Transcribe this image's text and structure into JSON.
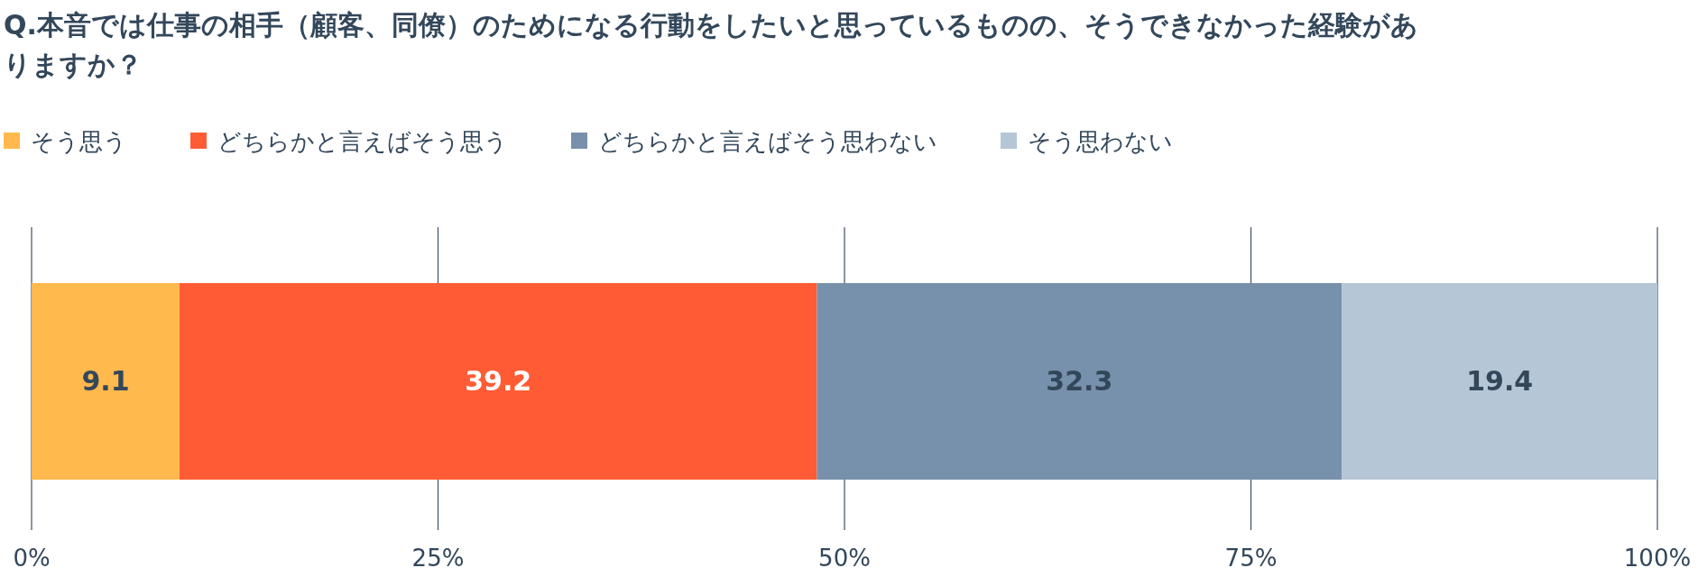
{
  "chart_data": {
    "type": "bar",
    "orientation": "horizontal",
    "stacked": true,
    "title": "Q.本音では仕事の相手（顧客、同僚）のためになる行動をしたいと思っているものの、そうできなかった経験がありますか？",
    "categories": [
      null
    ],
    "series": [
      {
        "name": "そう思う",
        "color": "#ffb94d",
        "values": [
          9.1
        ]
      },
      {
        "name": "どちらかと言えばそう思う",
        "color": "#ff5c35",
        "values": [
          39.2
        ]
      },
      {
        "name": "どちらかと言えばそう思わない",
        "color": "#7791ad",
        "values": [
          32.3
        ]
      },
      {
        "name": "そう思わない",
        "color": "#b5c6d6",
        "values": [
          19.4
        ]
      }
    ],
    "xlim": [
      0,
      100
    ],
    "xticks": [
      {
        "value": 0,
        "label": "0%"
      },
      {
        "value": 25,
        "label": "25%"
      },
      {
        "value": 50,
        "label": "50%"
      },
      {
        "value": 75,
        "label": "75%"
      },
      {
        "value": 100,
        "label": "100%"
      }
    ],
    "grid": "x",
    "legend": "top left",
    "data_labels": true
  }
}
